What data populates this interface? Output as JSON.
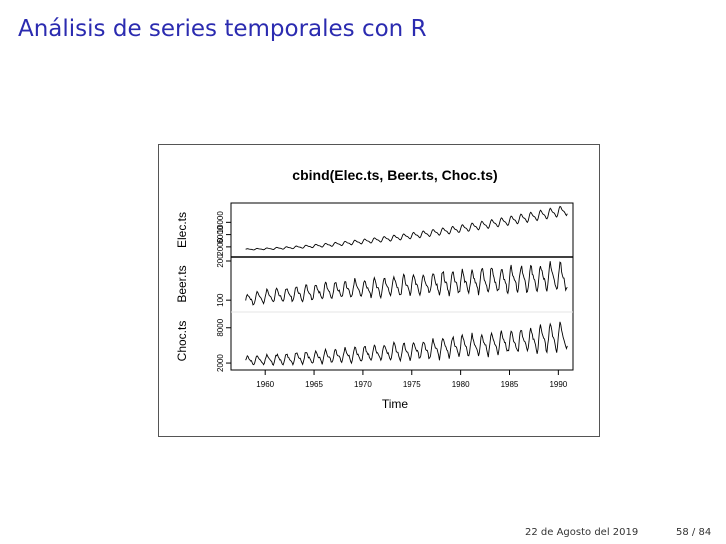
{
  "slide": {
    "title": "Análisis de series temporales con R",
    "footer_date": "22 de Agosto del 2019",
    "footer_page": "58 / 84"
  },
  "chart_data": {
    "type": "line",
    "title": "cbind(Elec.ts, Beer.ts, Choc.ts)",
    "xlabel": "Time",
    "xlim": [
      1956.5,
      1991.5
    ],
    "x_ticks": [
      1960,
      1965,
      1970,
      1975,
      1980,
      1985,
      1990
    ],
    "panels": [
      {
        "name": "Elec.ts",
        "ylim": [
          0,
          15000
        ],
        "y_ticks": [
          2000,
          6000,
          10000
        ],
        "y_tick_labels": [
          "2000",
          "6000",
          "10000"
        ],
        "start": 1958.0,
        "frequency": 12,
        "n": 396,
        "trend": {
          "start": 1200,
          "end": 14000,
          "power": 1.6
        },
        "seasonal_amplitude": {
          "start": 150,
          "end": 1400
        },
        "noise_amplitude": 0.05
      },
      {
        "name": "Beer.ts",
        "ylim": [
          80,
          200
        ],
        "y_ticks": [
          100,
          200
        ],
        "y_tick_labels": [
          "100",
          "200"
        ],
        "start": 1958.0,
        "frequency": 12,
        "n": 396,
        "trend": {
          "start": 100,
          "end": 160,
          "power": 0.7
        },
        "seasonal_amplitude": {
          "start": 12,
          "end": 30
        },
        "noise_amplitude": 0.35
      },
      {
        "name": "Choc.ts",
        "ylim": [
          1500,
          10000
        ],
        "y_ticks": [
          2000,
          8000
        ],
        "y_tick_labels": [
          "2000",
          "8000"
        ],
        "start": 1958.0,
        "frequency": 12,
        "n": 396,
        "trend": {
          "start": 2400,
          "end": 6500,
          "power": 1.3
        },
        "seasonal_amplitude": {
          "start": 600,
          "end": 1800
        },
        "noise_amplitude": 0.35
      }
    ]
  }
}
